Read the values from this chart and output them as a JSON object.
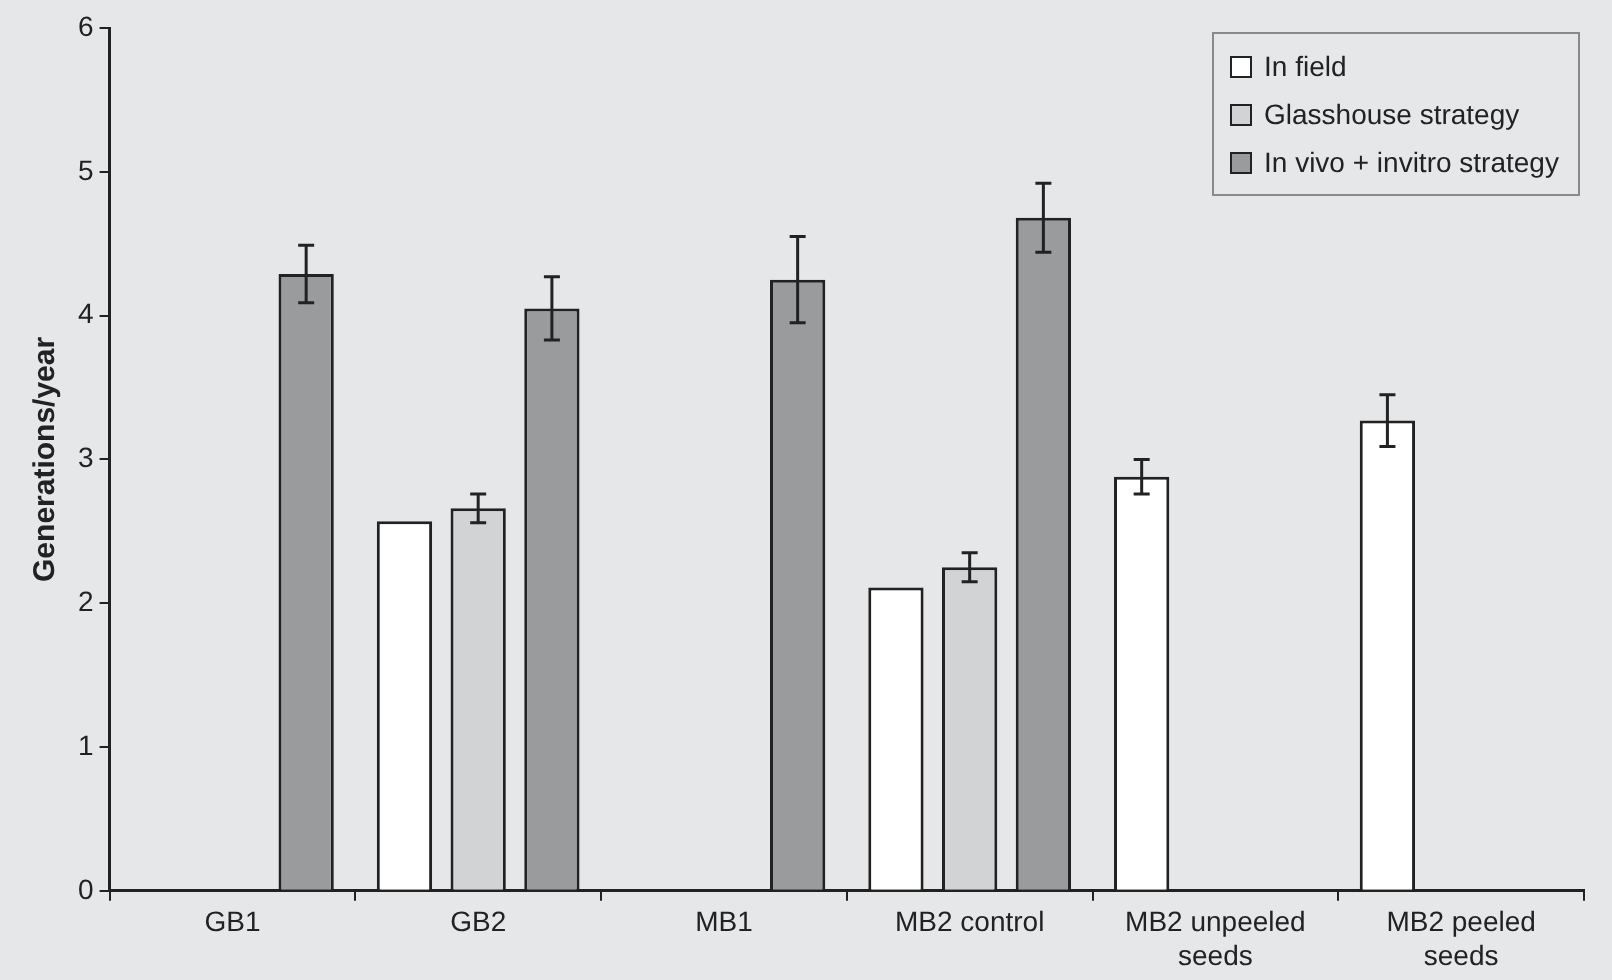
{
  "chart_data": {
    "type": "bar",
    "ylabel": "Generations/year",
    "categories": [
      "GB1",
      "GB2",
      "MB1",
      "MB2 control",
      "MB2 unpeeled seeds",
      "MB2 peeled seeds"
    ],
    "series": [
      {
        "name": "In field",
        "color": "#ffffff",
        "values": [
          null,
          2.57,
          null,
          2.11,
          2.88,
          3.27
        ],
        "errors": [
          null,
          null,
          null,
          null,
          0.12,
          0.18
        ]
      },
      {
        "name": "Glasshouse strategy",
        "color": "#d2d3d5",
        "values": [
          null,
          2.66,
          null,
          2.25,
          null,
          null
        ],
        "errors": [
          null,
          0.1,
          null,
          0.1,
          null,
          null
        ]
      },
      {
        "name": "In vivo + invitro strategy",
        "color": "#9a9b9d",
        "values": [
          4.29,
          4.05,
          4.25,
          4.68,
          null,
          null
        ],
        "errors": [
          0.2,
          0.22,
          0.3,
          0.24,
          null,
          null
        ]
      }
    ],
    "ylim": [
      0,
      6
    ],
    "yticks": [
      0,
      1,
      2,
      3,
      4,
      5,
      6
    ],
    "grid": false,
    "legend": "top right"
  }
}
